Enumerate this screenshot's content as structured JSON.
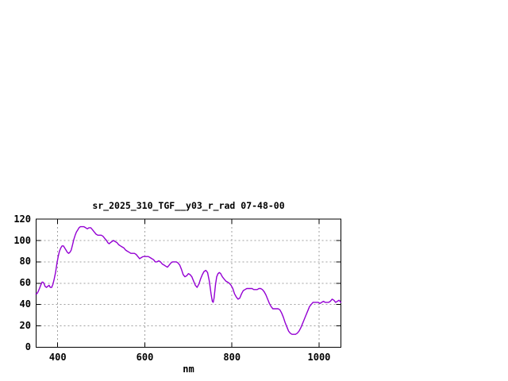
{
  "chart_data": {
    "type": "line",
    "title": "sr_2025_310_TGF__y03_r_rad 07-48-00",
    "xlabel": "nm",
    "ylabel": "",
    "xlim": [
      350,
      1050
    ],
    "ylim": [
      0,
      120
    ],
    "xticks": [
      400,
      600,
      800,
      1000
    ],
    "yticks": [
      0,
      20,
      40,
      60,
      80,
      100,
      120
    ],
    "grid": true,
    "legend_position": "none",
    "colors": {
      "line": "#9400D3",
      "grid": "#a0a0a0",
      "axis": "#000000",
      "text": "#000000",
      "background": "#ffffff"
    },
    "series": [
      {
        "name": "sr_2025_310_TGF__y03_r_rad 07-48-00",
        "points": [
          [
            350,
            50
          ],
          [
            352,
            50
          ],
          [
            355,
            52
          ],
          [
            358,
            55
          ],
          [
            361,
            58
          ],
          [
            364,
            61
          ],
          [
            366,
            61
          ],
          [
            368,
            60
          ],
          [
            371,
            57
          ],
          [
            374,
            56
          ],
          [
            377,
            57
          ],
          [
            380,
            58
          ],
          [
            383,
            56
          ],
          [
            386,
            56
          ],
          [
            389,
            59
          ],
          [
            392,
            64
          ],
          [
            395,
            70
          ],
          [
            398,
            78
          ],
          [
            401,
            85
          ],
          [
            404,
            90
          ],
          [
            407,
            93
          ],
          [
            410,
            95
          ],
          [
            413,
            95
          ],
          [
            416,
            93
          ],
          [
            419,
            91
          ],
          [
            422,
            89
          ],
          [
            425,
            88
          ],
          [
            428,
            89
          ],
          [
            431,
            91
          ],
          [
            434,
            96
          ],
          [
            437,
            101
          ],
          [
            440,
            105
          ],
          [
            443,
            108
          ],
          [
            446,
            110
          ],
          [
            449,
            112
          ],
          [
            452,
            113
          ],
          [
            456,
            113
          ],
          [
            460,
            113
          ],
          [
            464,
            112
          ],
          [
            468,
            111
          ],
          [
            472,
            112
          ],
          [
            476,
            112
          ],
          [
            480,
            110
          ],
          [
            484,
            108
          ],
          [
            488,
            106
          ],
          [
            492,
            105
          ],
          [
            496,
            105
          ],
          [
            500,
            105
          ],
          [
            504,
            104
          ],
          [
            508,
            102
          ],
          [
            512,
            100
          ],
          [
            515,
            98
          ],
          [
            518,
            97
          ],
          [
            521,
            98
          ],
          [
            524,
            99
          ],
          [
            528,
            100
          ],
          [
            532,
            99
          ],
          [
            536,
            98
          ],
          [
            540,
            96
          ],
          [
            544,
            95
          ],
          [
            548,
            94
          ],
          [
            552,
            93
          ],
          [
            556,
            91
          ],
          [
            560,
            90
          ],
          [
            564,
            89
          ],
          [
            568,
            88
          ],
          [
            572,
            88
          ],
          [
            576,
            88
          ],
          [
            580,
            87
          ],
          [
            584,
            85
          ],
          [
            588,
            83
          ],
          [
            592,
            84
          ],
          [
            596,
            85
          ],
          [
            600,
            85
          ],
          [
            604,
            85
          ],
          [
            608,
            85
          ],
          [
            612,
            84
          ],
          [
            616,
            83
          ],
          [
            620,
            82
          ],
          [
            624,
            80
          ],
          [
            628,
            80
          ],
          [
            632,
            81
          ],
          [
            636,
            80
          ],
          [
            640,
            78
          ],
          [
            644,
            77
          ],
          [
            648,
            76
          ],
          [
            652,
            75
          ],
          [
            656,
            77
          ],
          [
            660,
            79
          ],
          [
            664,
            80
          ],
          [
            668,
            80
          ],
          [
            672,
            80
          ],
          [
            676,
            79
          ],
          [
            680,
            77
          ],
          [
            684,
            73
          ],
          [
            688,
            68
          ],
          [
            692,
            66
          ],
          [
            696,
            67
          ],
          [
            700,
            69
          ],
          [
            704,
            68
          ],
          [
            708,
            66
          ],
          [
            712,
            62
          ],
          [
            716,
            58
          ],
          [
            720,
            56
          ],
          [
            724,
            59
          ],
          [
            728,
            64
          ],
          [
            732,
            68
          ],
          [
            736,
            71
          ],
          [
            740,
            72
          ],
          [
            744,
            70
          ],
          [
            748,
            62
          ],
          [
            752,
            50
          ],
          [
            755,
            43
          ],
          [
            757,
            42
          ],
          [
            759,
            46
          ],
          [
            762,
            58
          ],
          [
            765,
            66
          ],
          [
            768,
            69
          ],
          [
            771,
            70
          ],
          [
            774,
            69
          ],
          [
            778,
            66
          ],
          [
            782,
            64
          ],
          [
            786,
            62
          ],
          [
            790,
            61
          ],
          [
            794,
            60
          ],
          [
            798,
            58
          ],
          [
            802,
            55
          ],
          [
            806,
            50
          ],
          [
            810,
            47
          ],
          [
            814,
            45
          ],
          [
            818,
            46
          ],
          [
            822,
            50
          ],
          [
            826,
            53
          ],
          [
            830,
            54
          ],
          [
            834,
            55
          ],
          [
            838,
            55
          ],
          [
            842,
            55
          ],
          [
            846,
            55
          ],
          [
            850,
            54
          ],
          [
            854,
            54
          ],
          [
            858,
            54
          ],
          [
            862,
            55
          ],
          [
            866,
            55
          ],
          [
            870,
            54
          ],
          [
            874,
            52
          ],
          [
            878,
            49
          ],
          [
            882,
            45
          ],
          [
            886,
            41
          ],
          [
            890,
            38
          ],
          [
            894,
            36
          ],
          [
            898,
            36
          ],
          [
            902,
            36
          ],
          [
            906,
            36
          ],
          [
            910,
            35
          ],
          [
            914,
            32
          ],
          [
            918,
            28
          ],
          [
            922,
            23
          ],
          [
            926,
            19
          ],
          [
            930,
            15
          ],
          [
            934,
            13
          ],
          [
            938,
            12
          ],
          [
            942,
            12
          ],
          [
            946,
            12
          ],
          [
            950,
            13
          ],
          [
            954,
            15
          ],
          [
            958,
            18
          ],
          [
            962,
            22
          ],
          [
            966,
            26
          ],
          [
            970,
            30
          ],
          [
            974,
            34
          ],
          [
            978,
            38
          ],
          [
            982,
            40
          ],
          [
            986,
            42
          ],
          [
            990,
            42
          ],
          [
            994,
            42
          ],
          [
            998,
            42
          ],
          [
            1002,
            41
          ],
          [
            1006,
            42
          ],
          [
            1010,
            43
          ],
          [
            1014,
            42
          ],
          [
            1018,
            42
          ],
          [
            1022,
            42
          ],
          [
            1026,
            43
          ],
          [
            1030,
            45
          ],
          [
            1034,
            44
          ],
          [
            1038,
            42
          ],
          [
            1042,
            43
          ],
          [
            1046,
            44
          ],
          [
            1050,
            42
          ]
        ]
      }
    ]
  }
}
